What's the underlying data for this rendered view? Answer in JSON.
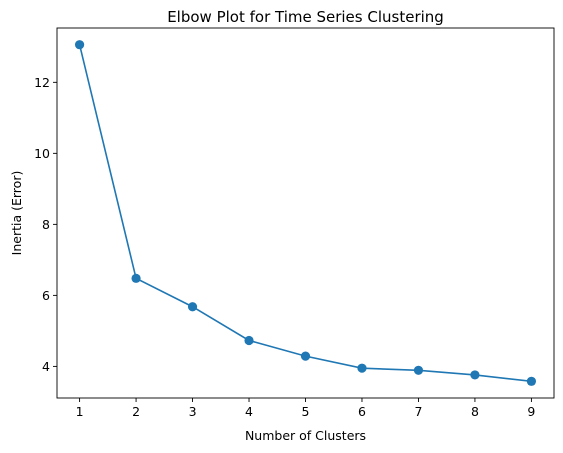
{
  "chart_data": {
    "type": "line",
    "title": "Elbow Plot for Time Series Clustering",
    "xlabel": "Number of Clusters",
    "ylabel": "Inertia (Error)",
    "x": [
      1,
      2,
      3,
      4,
      5,
      6,
      7,
      8,
      9
    ],
    "series": [
      {
        "values": [
          13.06,
          6.48,
          5.68,
          4.73,
          4.29,
          3.95,
          3.89,
          3.76,
          3.58
        ]
      }
    ],
    "xticks": [
      1,
      2,
      3,
      4,
      5,
      6,
      7,
      8,
      9
    ],
    "yticks": [
      4,
      6,
      8,
      10,
      12
    ],
    "xlim": [
      0.6,
      9.4
    ],
    "ylim": [
      3.11,
      13.53
    ],
    "grid": false,
    "marker": "circle",
    "color": "#1f77b4"
  }
}
